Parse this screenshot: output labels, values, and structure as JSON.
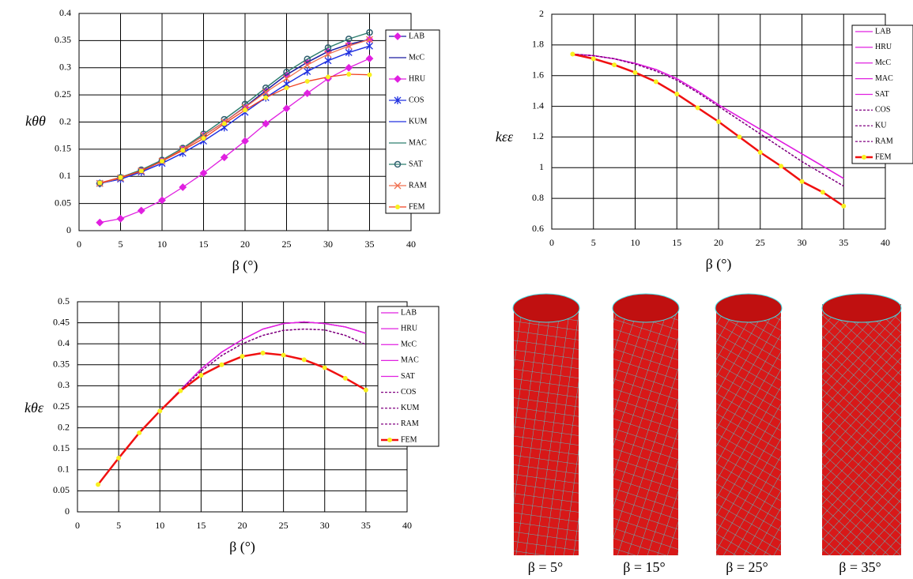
{
  "chart_data": [
    {
      "type": "line",
      "y_label": "kθθ",
      "x_label": "β (°)",
      "x": [
        2.5,
        5,
        7.5,
        10,
        12.5,
        15,
        17.5,
        20,
        22.5,
        25,
        27.5,
        30,
        32.5,
        35
      ],
      "xlim": [
        0,
        40
      ],
      "xticks": [
        0,
        5,
        10,
        15,
        20,
        25,
        30,
        35,
        40
      ],
      "ylim": [
        0,
        0.4
      ],
      "yticks": [
        0,
        0.05,
        0.1,
        0.15,
        0.2,
        0.25,
        0.3,
        0.35,
        0.4
      ],
      "grid": true,
      "series": [
        {
          "name": "LAB",
          "color": "#1a1aa0",
          "marker": "diamond",
          "marker_color": "#e020e0",
          "values": [
            0.087,
            0.097,
            0.11,
            0.128,
            0.15,
            0.175,
            0.2,
            0.228,
            0.258,
            0.287,
            0.31,
            0.33,
            0.343,
            0.352
          ]
        },
        {
          "name": "McC",
          "color": "#1a1aa0",
          "values": [
            0.087,
            0.097,
            0.11,
            0.128,
            0.15,
            0.175,
            0.2,
            0.228,
            0.258,
            0.287,
            0.31,
            0.33,
            0.343,
            0.352
          ]
        },
        {
          "name": "HRU",
          "color": "#e020e0",
          "marker": "diamond",
          "marker_color": "#e020e0",
          "values": [
            0.015,
            0.022,
            0.037,
            0.056,
            0.08,
            0.106,
            0.135,
            0.165,
            0.197,
            0.225,
            0.253,
            0.28,
            0.3,
            0.317
          ]
        },
        {
          "name": "COS",
          "color": "#2030e0",
          "marker": "star",
          "marker_color": "#2030e0",
          "values": [
            0.087,
            0.095,
            0.108,
            0.124,
            0.143,
            0.165,
            0.19,
            0.218,
            0.245,
            0.27,
            0.293,
            0.313,
            0.328,
            0.34
          ]
        },
        {
          "name": "KUM",
          "color": "#2030e0",
          "values": [
            0.087,
            0.095,
            0.108,
            0.124,
            0.143,
            0.165,
            0.19,
            0.218,
            0.245,
            0.27,
            0.293,
            0.313,
            0.328,
            0.34
          ]
        },
        {
          "name": "MAC",
          "color": "#2f7f6f",
          "values": [
            0.087,
            0.098,
            0.112,
            0.13,
            0.152,
            0.178,
            0.205,
            0.233,
            0.263,
            0.292,
            0.316,
            0.337,
            0.353,
            0.365
          ]
        },
        {
          "name": "SAT",
          "color": "#2f7f6f",
          "marker": "circle",
          "marker_color": "#2f5f6f",
          "values": [
            0.087,
            0.098,
            0.112,
            0.13,
            0.152,
            0.178,
            0.205,
            0.233,
            0.263,
            0.292,
            0.316,
            0.337,
            0.353,
            0.365
          ]
        },
        {
          "name": "RAM",
          "color": "#f07050",
          "marker": "x",
          "marker_color": "#f07050",
          "values": [
            0.087,
            0.097,
            0.11,
            0.128,
            0.15,
            0.175,
            0.2,
            0.227,
            0.255,
            0.28,
            0.305,
            0.325,
            0.34,
            0.352
          ]
        },
        {
          "name": "FEM",
          "color": "#f04020",
          "marker": "dot",
          "marker_color": "#f8f020",
          "values": [
            0.088,
            0.098,
            0.11,
            0.128,
            0.148,
            0.17,
            0.197,
            0.222,
            0.245,
            0.263,
            0.275,
            0.283,
            0.288,
            0.287
          ]
        }
      ]
    },
    {
      "type": "line",
      "y_label": "kεε",
      "x_label": "β (°)",
      "x": [
        2.5,
        5,
        7.5,
        10,
        12.5,
        15,
        17.5,
        20,
        22.5,
        25,
        27.5,
        30,
        32.5,
        35
      ],
      "xlim": [
        0,
        40
      ],
      "xticks": [
        0,
        5,
        10,
        15,
        20,
        25,
        30,
        35,
        40
      ],
      "ylim": [
        0.6,
        2
      ],
      "yticks": [
        0.6,
        0.8,
        1,
        1.2,
        1.4,
        1.6,
        1.8,
        2
      ],
      "grid": true,
      "series": [
        {
          "name": "LAB",
          "color": "#e020e0",
          "values": [
            1.74,
            1.73,
            1.71,
            1.68,
            1.64,
            1.58,
            1.5,
            1.41,
            1.33,
            1.25,
            1.17,
            1.09,
            1.01,
            0.93
          ]
        },
        {
          "name": "HRU",
          "color": "#e020e0",
          "values": [
            1.74,
            1.73,
            1.71,
            1.68,
            1.64,
            1.58,
            1.5,
            1.41,
            1.33,
            1.25,
            1.17,
            1.09,
            1.01,
            0.93
          ]
        },
        {
          "name": "McC",
          "color": "#e020e0",
          "values": [
            1.74,
            1.73,
            1.71,
            1.68,
            1.64,
            1.58,
            1.5,
            1.41,
            1.33,
            1.25,
            1.17,
            1.09,
            1.01,
            0.93
          ]
        },
        {
          "name": "MAC",
          "color": "#e020e0",
          "values": [
            1.74,
            1.73,
            1.71,
            1.68,
            1.64,
            1.58,
            1.5,
            1.41,
            1.33,
            1.25,
            1.17,
            1.09,
            1.01,
            0.93
          ]
        },
        {
          "name": "SAT",
          "color": "#e020e0",
          "values": [
            1.74,
            1.73,
            1.71,
            1.68,
            1.64,
            1.58,
            1.5,
            1.41,
            1.33,
            1.25,
            1.17,
            1.09,
            1.01,
            0.93
          ]
        },
        {
          "name": "COS",
          "color": "#800080",
          "dash": true,
          "values": [
            1.74,
            1.73,
            1.71,
            1.675,
            1.63,
            1.57,
            1.49,
            1.4,
            1.31,
            1.22,
            1.13,
            1.04,
            0.96,
            0.88
          ]
        },
        {
          "name": "KU",
          "color": "#800080",
          "dash": true,
          "values": [
            1.74,
            1.73,
            1.71,
            1.675,
            1.63,
            1.57,
            1.49,
            1.4,
            1.31,
            1.22,
            1.13,
            1.04,
            0.96,
            0.88
          ]
        },
        {
          "name": "RAM",
          "color": "#800080",
          "dash": true,
          "values": [
            1.74,
            1.73,
            1.71,
            1.675,
            1.63,
            1.57,
            1.49,
            1.4,
            1.31,
            1.22,
            1.13,
            1.04,
            0.96,
            0.88
          ]
        },
        {
          "name": "FEM",
          "color": "#f01010",
          "line_width": 2.5,
          "marker": "dot",
          "marker_color": "#f8f020",
          "values": [
            1.74,
            1.71,
            1.67,
            1.62,
            1.56,
            1.48,
            1.39,
            1.3,
            1.2,
            1.1,
            1.01,
            0.91,
            0.84,
            0.75
          ]
        }
      ]
    },
    {
      "type": "line",
      "y_label": "kθε",
      "x_label": "β (°)",
      "x": [
        2.5,
        5,
        7.5,
        10,
        12.5,
        15,
        17.5,
        20,
        22.5,
        25,
        27.5,
        30,
        32.5,
        35
      ],
      "xlim": [
        0,
        40
      ],
      "xticks": [
        0,
        5,
        10,
        15,
        20,
        25,
        30,
        35,
        40
      ],
      "ylim": [
        0,
        0.5
      ],
      "yticks": [
        0,
        0.05,
        0.1,
        0.15,
        0.2,
        0.25,
        0.3,
        0.35,
        0.4,
        0.45,
        0.5
      ],
      "grid": true,
      "series": [
        {
          "name": "LAB",
          "color": "#e020e0",
          "values": [
            0.065,
            0.128,
            0.188,
            0.24,
            0.29,
            0.34,
            0.38,
            0.41,
            0.435,
            0.448,
            0.452,
            0.448,
            0.44,
            0.425
          ]
        },
        {
          "name": "HRU",
          "color": "#e020e0",
          "values": [
            0.065,
            0.128,
            0.188,
            0.24,
            0.29,
            0.34,
            0.38,
            0.41,
            0.435,
            0.448,
            0.452,
            0.448,
            0.44,
            0.425
          ]
        },
        {
          "name": "McC",
          "color": "#e020e0",
          "values": [
            0.065,
            0.128,
            0.188,
            0.24,
            0.29,
            0.34,
            0.38,
            0.41,
            0.435,
            0.448,
            0.452,
            0.448,
            0.44,
            0.425
          ]
        },
        {
          "name": "MAC",
          "color": "#e020e0",
          "values": [
            0.065,
            0.128,
            0.188,
            0.24,
            0.29,
            0.34,
            0.38,
            0.41,
            0.435,
            0.448,
            0.452,
            0.448,
            0.44,
            0.425
          ]
        },
        {
          "name": "SAT",
          "color": "#e020e0",
          "values": [
            0.065,
            0.128,
            0.188,
            0.24,
            0.29,
            0.34,
            0.38,
            0.41,
            0.435,
            0.448,
            0.452,
            0.448,
            0.44,
            0.425
          ]
        },
        {
          "name": "COS",
          "color": "#800080",
          "dash": true,
          "values": [
            0.065,
            0.128,
            0.188,
            0.24,
            0.29,
            0.335,
            0.372,
            0.4,
            0.42,
            0.432,
            0.435,
            0.433,
            0.42,
            0.398
          ]
        },
        {
          "name": "KUM",
          "color": "#800080",
          "dash": true,
          "values": [
            0.065,
            0.128,
            0.188,
            0.24,
            0.29,
            0.335,
            0.372,
            0.4,
            0.42,
            0.432,
            0.435,
            0.433,
            0.42,
            0.398
          ]
        },
        {
          "name": "RAM",
          "color": "#800080",
          "dash": true,
          "values": [
            0.065,
            0.128,
            0.188,
            0.24,
            0.29,
            0.335,
            0.372,
            0.4,
            0.42,
            0.432,
            0.435,
            0.433,
            0.42,
            0.398
          ]
        },
        {
          "name": "FEM",
          "color": "#f01010",
          "line_width": 2.5,
          "marker": "dot",
          "marker_color": "#f8f020",
          "values": [
            0.065,
            0.128,
            0.188,
            0.24,
            0.288,
            0.325,
            0.35,
            0.37,
            0.378,
            0.373,
            0.362,
            0.343,
            0.318,
            0.29
          ]
        }
      ]
    }
  ],
  "figure": {
    "captions": [
      "β = 5°",
      "β = 15°",
      "β = 25°",
      "β = 35°"
    ]
  }
}
